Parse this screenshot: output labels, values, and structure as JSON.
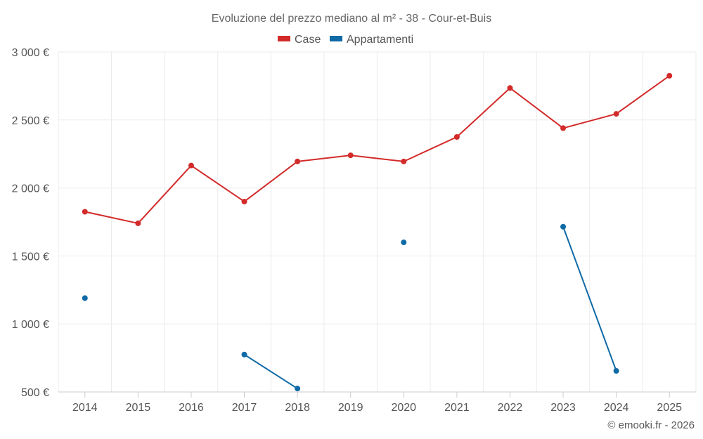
{
  "chart_data": {
    "type": "line",
    "title": "Evoluzione del prezzo mediano al m² - 38 - Cour-et-Buis",
    "categories": [
      "2014",
      "2015",
      "2016",
      "2017",
      "2018",
      "2019",
      "2020",
      "2021",
      "2022",
      "2023",
      "2024",
      "2025"
    ],
    "ylim": [
      500,
      3000
    ],
    "yticks": [
      500,
      1000,
      1500,
      2000,
      2500,
      3000
    ],
    "ytick_labels": [
      "500 €",
      "1 000 €",
      "1 500 €",
      "2 000 €",
      "2 500 €",
      "3 000 €"
    ],
    "grid": true,
    "legend_position": "top-center",
    "series": [
      {
        "name": "Case",
        "color": "#d32a2a",
        "values": [
          1825,
          1740,
          2165,
          1900,
          2195,
          2240,
          2195,
          2375,
          2735,
          2440,
          2545,
          2825
        ]
      },
      {
        "name": "Appartamenti",
        "color": "#0f6aa6",
        "values": [
          1190,
          null,
          null,
          775,
          525,
          null,
          1600,
          null,
          null,
          1715,
          655,
          null
        ]
      }
    ],
    "credit": "© emooki.fr - 2026"
  }
}
